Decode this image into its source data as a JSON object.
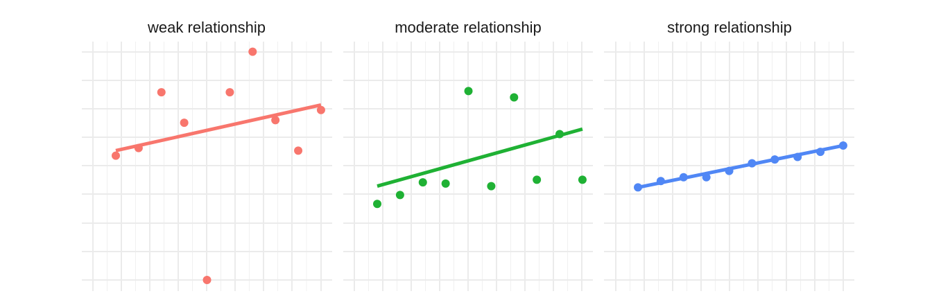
{
  "chart_data": [
    {
      "type": "scatter",
      "title": "weak relationship",
      "color": "#F8766D",
      "x": [
        1,
        2,
        3,
        4,
        5,
        6,
        7,
        8,
        9,
        10
      ],
      "y": [
        4.9,
        5.2,
        7.4,
        6.2,
        0.0,
        7.4,
        9.0,
        6.3,
        5.1,
        6.7
      ],
      "fit": {
        "x": [
          1,
          10
        ],
        "y": [
          5.1,
          6.9
        ]
      }
    },
    {
      "type": "scatter",
      "title": "moderate relationship",
      "color": "#1FB134",
      "x": [
        1,
        2,
        3,
        4,
        5,
        6,
        7,
        8,
        9,
        10
      ],
      "y": [
        3.0,
        3.35,
        3.85,
        3.8,
        7.45,
        3.7,
        7.2,
        3.95,
        5.75,
        3.95
      ],
      "fit": {
        "x": [
          1,
          10
        ],
        "y": [
          3.7,
          5.95
        ]
      }
    },
    {
      "type": "scatter",
      "title": "strong relationship",
      "color": "#5087F5",
      "x": [
        1,
        2,
        3,
        4,
        5,
        6,
        7,
        8,
        9,
        10
      ],
      "y": [
        3.65,
        3.9,
        4.05,
        4.05,
        4.3,
        4.6,
        4.75,
        4.85,
        5.05,
        5.3
      ],
      "fit": {
        "x": [
          1,
          10
        ],
        "y": [
          3.65,
          5.3
        ]
      }
    }
  ]
}
